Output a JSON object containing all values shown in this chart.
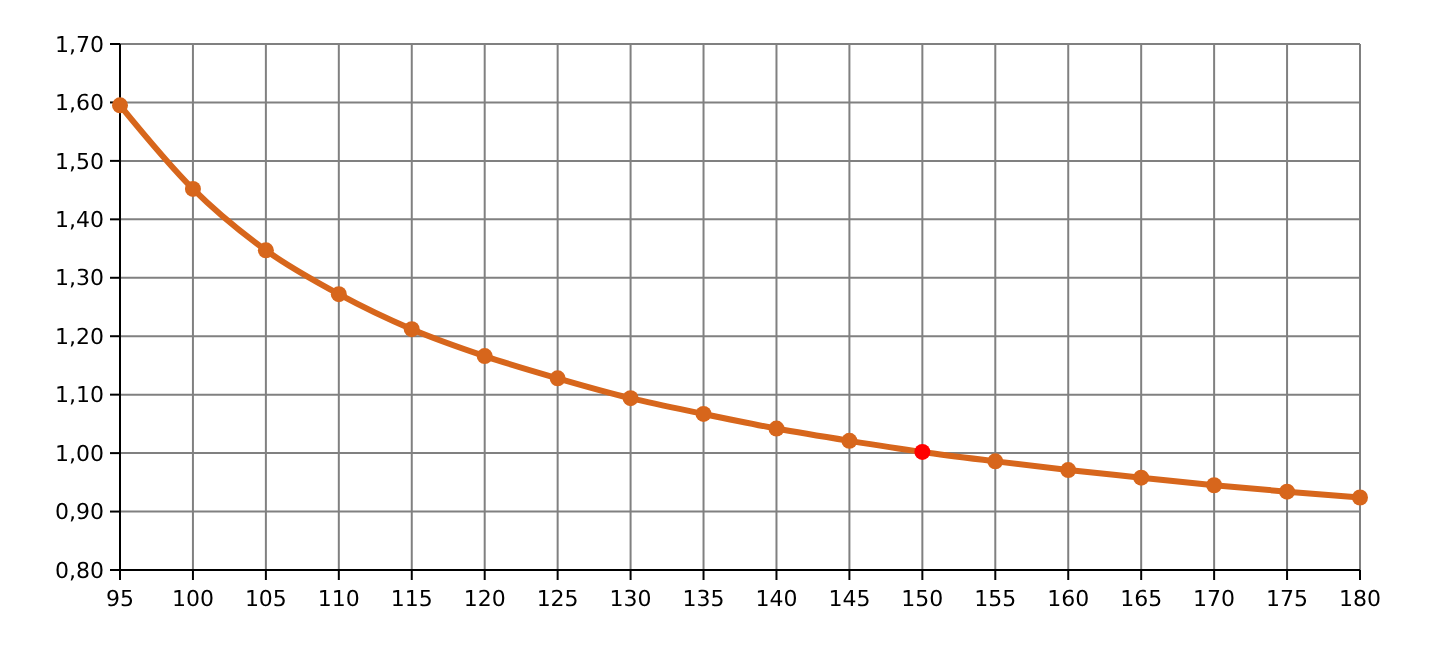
{
  "chart_data": {
    "type": "line",
    "x": [
      95,
      100,
      105,
      110,
      115,
      120,
      125,
      130,
      135,
      140,
      145,
      150,
      155,
      160,
      165,
      170,
      175,
      180
    ],
    "series": [
      {
        "color": "#d7661c",
        "colors": [
          "#d7661c",
          "#d7661c",
          "#d7661c",
          "#d7661c",
          "#d7661c",
          "#d7661c",
          "#d7661c",
          "#d7661c",
          "#d7661c",
          "#d7661c",
          "#d7661c",
          "#ff0000",
          "#d7661c",
          "#d7661c",
          "#d7661c",
          "#d7661c",
          "#d7661c",
          "#d7661c"
        ],
        "values": [
          1.595,
          1.452,
          1.347,
          1.272,
          1.212,
          1.166,
          1.128,
          1.094,
          1.067,
          1.042,
          1.021,
          1.002,
          0.986,
          0.971,
          0.958,
          0.945,
          0.934,
          0.924
        ]
      }
    ],
    "xlim": [
      95,
      180
    ],
    "xticks": [
      95,
      100,
      105,
      110,
      115,
      120,
      125,
      130,
      135,
      140,
      145,
      150,
      155,
      160,
      165,
      170,
      175,
      180
    ],
    "ylim": [
      0.8,
      1.7
    ],
    "yticks": [
      {
        "value": 0.8,
        "label": "0,80"
      },
      {
        "value": 0.9,
        "label": "0,90"
      },
      {
        "value": 1.0,
        "label": "1,00"
      },
      {
        "value": 1.1,
        "label": "1,10"
      },
      {
        "value": 1.2,
        "label": "1,20"
      },
      {
        "value": 1.3,
        "label": "1,30"
      },
      {
        "value": 1.4,
        "label": "1,40"
      },
      {
        "value": 1.5,
        "label": "1,50"
      },
      {
        "value": 1.6,
        "label": "1,60"
      },
      {
        "value": 1.7,
        "label": "1,70"
      }
    ],
    "grid": true,
    "marker": "circle",
    "line_style": "solid"
  }
}
